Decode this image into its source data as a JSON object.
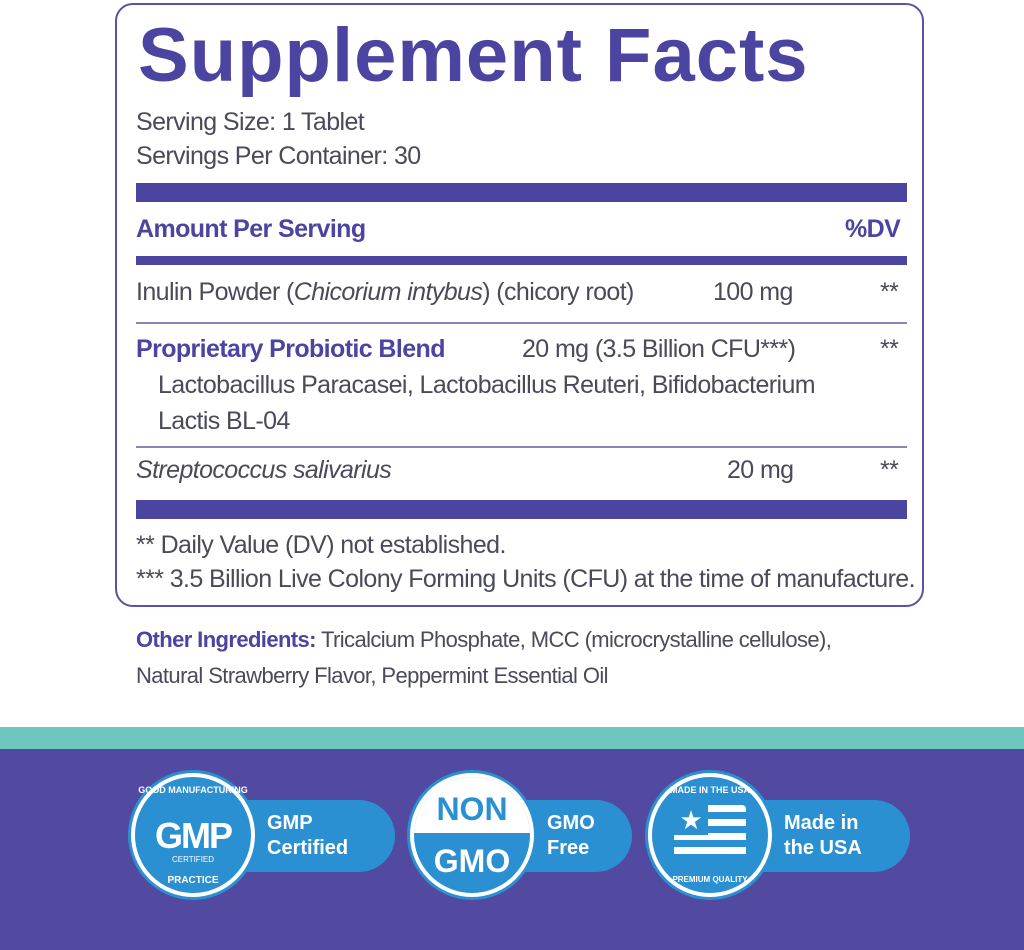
{
  "title": "Supplement Facts",
  "serving_size": "Serving Size: 1 Tablet",
  "servings_per_container": "Servings Per Container: 30",
  "header": {
    "amount": "Amount Per Serving",
    "dv": "%DV"
  },
  "rows": [
    {
      "name": "Inulin Powder (",
      "name_italic": "Chicorium intybus",
      "name_rest": ") (chicory root)",
      "amount": "100 mg",
      "dv": "**"
    },
    {
      "name": "Proprietary Probiotic Blend",
      "amount": "20 mg (3.5 Billion CFU***)",
      "dv": "**",
      "sub1": "Lactobacillus Paracasei, Lactobacillus Reuteri, Bifidobacterium",
      "sub2": "Lactis BL-04"
    },
    {
      "name": "Streptococcus salivarius",
      "amount": "20 mg",
      "dv": "**"
    }
  ],
  "footnotes": [
    "** Daily Value (DV)  not established.",
    "*** 3.5 Billion Live Colony Forming Units (CFU) at the time of manufacture."
  ],
  "other": {
    "label": "Other Ingredients:",
    "line1": " Tricalcium Phosphate, MCC (microcrystalline cellulose),",
    "line2": "Natural Strawberry Flavor, Peppermint Essential Oil"
  },
  "badges": [
    {
      "seal_top": "GOOD MANUFACTURING",
      "seal_main": "GMP",
      "seal_sub": "CERTIFIED",
      "seal_bottom": "PRACTICE",
      "l1": "GMP",
      "l2": "Certified"
    },
    {
      "seal_top": "NON",
      "seal_main": "GMO",
      "l1": "GMO",
      "l2": "Free"
    },
    {
      "seal_top": "MADE IN THE USA",
      "seal_bottom": "PREMIUM QUALITY",
      "l1": "Made in",
      "l2": "the USA"
    }
  ],
  "colors": {
    "purple": "#4b44a0",
    "teal": "#6dc7be",
    "blue": "#2b90d2"
  }
}
